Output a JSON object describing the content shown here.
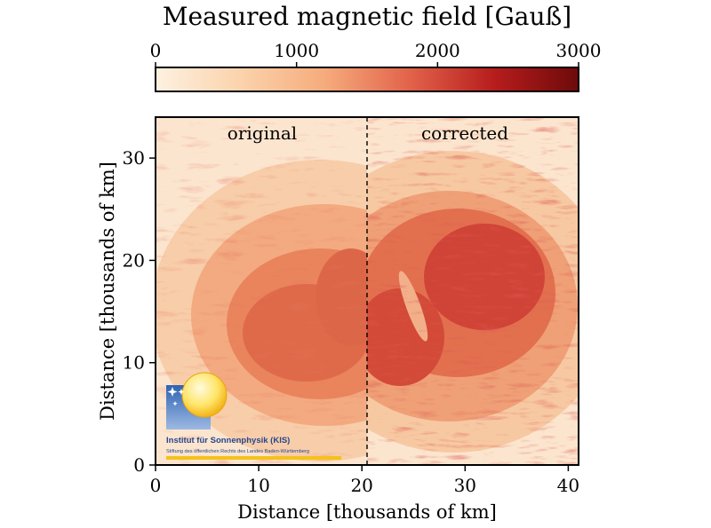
{
  "chart_data": {
    "type": "heatmap",
    "colorbar": {
      "title": "Measured magnetic field [Gauß]",
      "range": [
        0,
        3000
      ],
      "ticks": [
        0,
        1000,
        2000,
        3000
      ],
      "tick_labels": [
        "0",
        "1000",
        "2000",
        "3000"
      ],
      "colors": [
        "#fdf1e1",
        "#fbd3ac",
        "#f6ab7c",
        "#e2634a",
        "#b71d1d",
        "#6e0a0a"
      ]
    },
    "xlabel": "Distance [thousands of km]",
    "ylabel": "Distance [thousands of km]",
    "xlim": [
      0,
      41
    ],
    "ylim": [
      0,
      34
    ],
    "xticks": [
      0,
      10,
      20,
      30,
      40
    ],
    "xtick_labels": [
      "0",
      "10",
      "20",
      "30",
      "40"
    ],
    "yticks": [
      0,
      10,
      20,
      30
    ],
    "ytick_labels": [
      "0",
      "10",
      "20",
      "30"
    ],
    "divider_x": 20.5,
    "panels": [
      {
        "label": "original",
        "peak_gauss": 1900,
        "umbra_centers": [
          {
            "x": 14.5,
            "y": 14.0
          },
          {
            "x": 19.0,
            "y": 17.0
          }
        ]
      },
      {
        "label": "corrected",
        "peak_gauss": 2300,
        "umbra_centers": [
          {
            "x": 23.0,
            "y": 14.5
          },
          {
            "x": 29.5,
            "y": 18.0
          }
        ]
      }
    ]
  },
  "logo": {
    "name": "Institut für Sonnenphysik (KIS)",
    "subtitle": "Stiftung des öffentlichen Rechts des Landes Baden-Württemberg"
  }
}
